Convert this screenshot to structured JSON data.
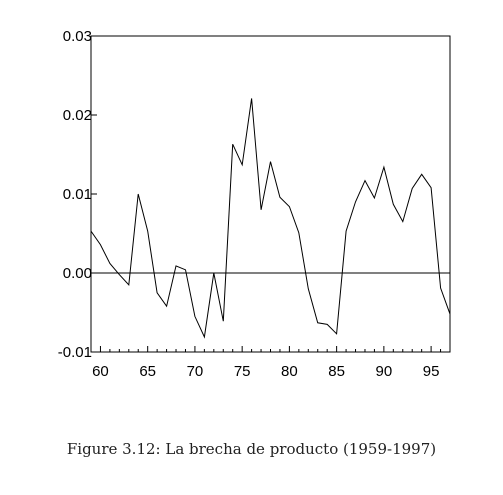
{
  "chart_data": {
    "type": "line",
    "title": "",
    "xlabel": "",
    "ylabel": "",
    "xlim": [
      1959,
      1997
    ],
    "ylim": [
      -0.01,
      0.03
    ],
    "grid": false,
    "x": [
      1959,
      1960,
      1961,
      1962,
      1963,
      1964,
      1965,
      1966,
      1967,
      1968,
      1969,
      1970,
      1971,
      1972,
      1973,
      1974,
      1975,
      1976,
      1977,
      1978,
      1979,
      1980,
      1981,
      1982,
      1983,
      1984,
      1985,
      1986,
      1987,
      1988,
      1989,
      1990,
      1991,
      1992,
      1993,
      1994,
      1995,
      1996,
      1997
    ],
    "series": [
      {
        "name": "",
        "values": [
          0.0053,
          0.0036,
          0.0012,
          -0.0002,
          -0.0015,
          0.01,
          0.0053,
          -0.0025,
          -0.0042,
          0.0009,
          0.0004,
          -0.0055,
          -0.0081,
          0.0,
          -0.0061,
          0.0163,
          0.0137,
          0.0221,
          0.008,
          0.0141,
          0.0096,
          0.0084,
          0.0051,
          -0.002,
          -0.0063,
          -0.0065,
          -0.0077,
          0.0053,
          0.009,
          0.0117,
          0.0095,
          0.0134,
          0.0087,
          0.0065,
          0.0107,
          0.0125,
          0.0108,
          -0.0019,
          -0.0052
        ]
      }
    ],
    "y_ticks": [
      -0.01,
      0.0,
      0.01,
      0.02,
      0.03
    ],
    "y_tick_labels": [
      "-0.01",
      "0.00",
      "0.01",
      "0.02",
      "0.03"
    ],
    "x_ticks": [
      1960,
      1965,
      1970,
      1975,
      1980,
      1985,
      1990,
      1995
    ],
    "x_tick_labels": [
      "60",
      "65",
      "70",
      "75",
      "80",
      "85",
      "90",
      "95"
    ],
    "zero_line": true
  },
  "caption": "Figure 3.12: La brecha de producto (1959-1997)"
}
